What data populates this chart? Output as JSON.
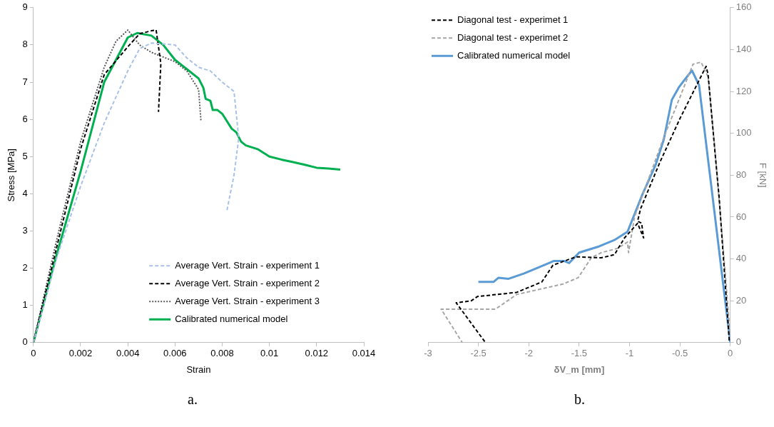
{
  "chart_data": [
    {
      "type": "line",
      "xlabel": "Strain",
      "ylabel": "Stress [MPa]",
      "xlim": [
        0,
        0.014
      ],
      "xticks": [
        0,
        0.002,
        0.004,
        0.006,
        0.008,
        0.01,
        0.012,
        0.014
      ],
      "ylim": [
        0,
        9
      ],
      "yticks": [
        0,
        1,
        2,
        3,
        4,
        5,
        6,
        7,
        8,
        9
      ],
      "legend": "bottom right",
      "annotations": [
        "a."
      ],
      "series": [
        {
          "name": "Average Vert. Strain - experiment 1",
          "color": "#a9c1e6",
          "line_style": "dashed",
          "x": [
            0,
            0.001,
            0.002,
            0.003,
            0.004,
            0.0045,
            0.005,
            0.006,
            0.0065,
            0.007,
            0.0075,
            0.008,
            0.0085,
            0.0087,
            0.0085,
            0.0082
          ],
          "values": [
            0,
            2.3,
            4.2,
            5.9,
            7.3,
            7.9,
            8.05,
            8.0,
            7.65,
            7.4,
            7.3,
            7.0,
            6.75,
            5.5,
            4.5,
            3.55
          ]
        },
        {
          "name": "Average Vert. Strain - experiment 2",
          "color": "#000000",
          "line_style": "dashed",
          "x": [
            0,
            0.001,
            0.002,
            0.003,
            0.004,
            0.0045,
            0.005,
            0.0052,
            0.0054,
            0.0053
          ],
          "values": [
            0,
            2.6,
            5.2,
            7.2,
            7.95,
            8.3,
            8.38,
            8.4,
            7.5,
            6.2
          ]
        },
        {
          "name": "Average Vert. Strain - experiment 3",
          "color": "#595959",
          "line_style": "dotted",
          "x": [
            0,
            0.001,
            0.002,
            0.003,
            0.0035,
            0.004,
            0.0045,
            0.005,
            0.006,
            0.0065,
            0.007,
            0.0071
          ],
          "values": [
            0,
            2.8,
            5.4,
            7.4,
            8.1,
            8.4,
            8.0,
            7.8,
            7.55,
            7.3,
            6.8,
            5.95
          ]
        },
        {
          "name": "Calibrated numerical model",
          "color": "#00b050",
          "line_style": "solid",
          "x": [
            0,
            0.001,
            0.002,
            0.003,
            0.004,
            0.0044,
            0.005,
            0.0055,
            0.006,
            0.0065,
            0.007,
            0.0072,
            0.0073,
            0.0075,
            0.0076,
            0.0078,
            0.008,
            0.0082,
            0.0084,
            0.0086,
            0.0088,
            0.009,
            0.0095,
            0.01,
            0.0105,
            0.011,
            0.0115,
            0.012,
            0.0125,
            0.013
          ],
          "values": [
            0,
            2.4,
            4.6,
            7.0,
            8.2,
            8.32,
            8.25,
            8.0,
            7.6,
            7.35,
            7.1,
            6.85,
            6.55,
            6.5,
            6.25,
            6.25,
            6.15,
            5.95,
            5.75,
            5.65,
            5.4,
            5.3,
            5.2,
            5.0,
            4.92,
            4.85,
            4.78,
            4.7,
            4.68,
            4.65
          ]
        }
      ]
    },
    {
      "type": "line",
      "xlabel": "δV_m [mm]",
      "y2label": "F [kN]",
      "xlim": [
        -3,
        0
      ],
      "xticks": [
        -3,
        -2.5,
        -2,
        -1.5,
        -1,
        -0.5,
        0
      ],
      "y2lim": [
        0,
        160
      ],
      "y2ticks": [
        0,
        20,
        40,
        60,
        80,
        100,
        120,
        140,
        160
      ],
      "legend": "top left",
      "annotations": [
        "b."
      ],
      "series": [
        {
          "name": "Diagonal test - experimet 1",
          "color": "#000000",
          "line_style": "dashed",
          "axis": "y2",
          "x": [
            -0.01,
            -0.11,
            -0.15,
            -0.22,
            -0.24,
            -0.5,
            -0.7,
            -0.89,
            -0.92,
            -0.88,
            -0.86,
            -0.92,
            -1.05,
            -1.15,
            -1.28,
            -1.53,
            -1.76,
            -1.87,
            -2.12,
            -2.51,
            -2.57,
            -2.72,
            -2.43
          ],
          "values": [
            1,
            69,
            90,
            128,
            132,
            107,
            86,
            64,
            58,
            57,
            50,
            57,
            50,
            42,
            40.5,
            41,
            37,
            29,
            24,
            22,
            20,
            19,
            0
          ]
        },
        {
          "name": "Diagonal test - experimet 2",
          "color": "#a6a6a6",
          "line_style": "dashed",
          "axis": "y2",
          "x": [
            0,
            -0.05,
            -0.15,
            -0.22,
            -0.29,
            -0.37,
            -0.51,
            -0.66,
            -0.95,
            -1.01,
            -1.02,
            -1.12,
            -1.28,
            -1.38,
            -1.51,
            -1.66,
            -2.12,
            -2.33,
            -2.87,
            -2.66
          ],
          "values": [
            2,
            33,
            91,
            127,
            134,
            133,
            116,
            98,
            60,
            43,
            48,
            45,
            43,
            40.5,
            31,
            28,
            23,
            16,
            16,
            0
          ]
        },
        {
          "name": "Calibrated numerical model",
          "color": "#5b9bd5",
          "line_style": "solid",
          "axis": "y2",
          "x": [
            0,
            -0.31,
            -0.38,
            -0.43,
            -0.51,
            -0.58,
            -0.66,
            -0.74,
            -0.87,
            -1.02,
            -1.15,
            -1.3,
            -1.5,
            -1.6,
            -1.65,
            -1.75,
            -1.9,
            -2.05,
            -2.2,
            -2.3,
            -2.35,
            -2.5
          ],
          "values": [
            0,
            123,
            130,
            127,
            122,
            116,
            97,
            85,
            71,
            53,
            49,
            46,
            43,
            38,
            39,
            39,
            36,
            33,
            30.5,
            31,
            29,
            29
          ]
        }
      ]
    }
  ]
}
